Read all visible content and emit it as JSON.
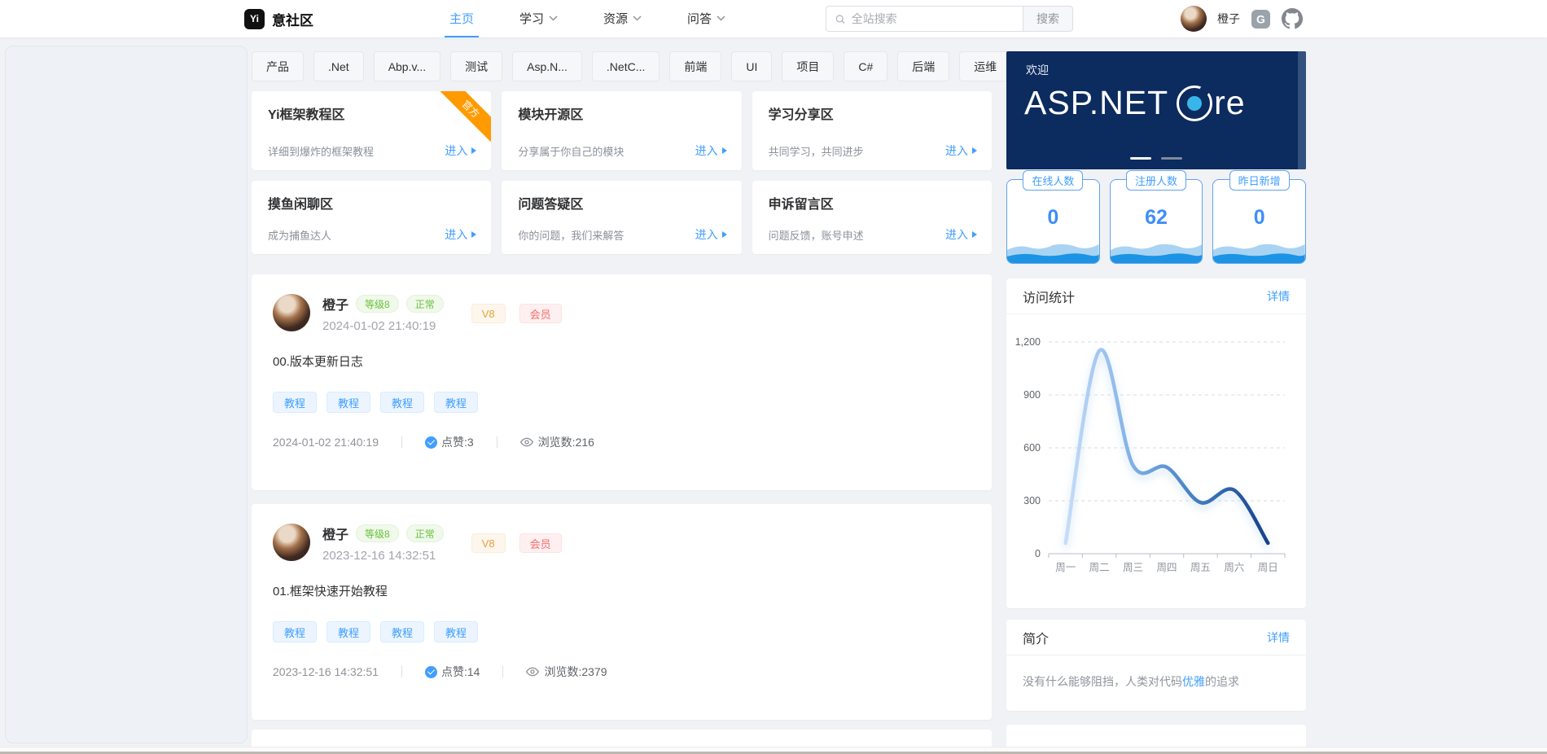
{
  "header": {
    "brand": "意社区",
    "brand_mark": "Yi",
    "nav": [
      {
        "label": "主页"
      },
      {
        "label": "学习"
      },
      {
        "label": "资源"
      },
      {
        "label": "问答"
      }
    ],
    "search": {
      "placeholder": "全站搜索",
      "button": "搜索"
    },
    "username": "橙子"
  },
  "tags": [
    "产品",
    ".Net",
    "Abp.v...",
    "测试",
    "Asp.N...",
    ".NetC...",
    "前端",
    "UI",
    "项目",
    "C#",
    "后端",
    "运维"
  ],
  "zones": [
    {
      "title": "Yi框架教程区",
      "desc": "详细到爆炸的框架教程",
      "enter": "进入",
      "ribbon": "官方"
    },
    {
      "title": "模块开源区",
      "desc": "分享属于你自己的模块",
      "enter": "进入"
    },
    {
      "title": "学习分享区",
      "desc": "共同学习，共同进步",
      "enter": "进入"
    },
    {
      "title": "摸鱼闲聊区",
      "desc": "成为捕鱼达人",
      "enter": "进入"
    },
    {
      "title": "问题答疑区",
      "desc": "你的问题，我们来解答",
      "enter": "进入"
    },
    {
      "title": "申诉留言区",
      "desc": "问题反馈，账号申述",
      "enter": "进入"
    }
  ],
  "posts": [
    {
      "author": "橙子",
      "level_badge": "等级8",
      "status_badge": "正常",
      "vip_badge": "V8",
      "member_badge": "会员",
      "datetime": "2024-01-02 21:40:19",
      "title": "00.版本更新日志",
      "tags": [
        "教程",
        "教程",
        "教程",
        "教程"
      ],
      "footer_time": "2024-01-02 21:40:19",
      "likes_label": "点赞:3",
      "views_label": "浏览数:216"
    },
    {
      "author": "橙子",
      "level_badge": "等级8",
      "status_badge": "正常",
      "vip_badge": "V8",
      "member_badge": "会员",
      "datetime": "2023-12-16 14:32:51",
      "title": "01.框架快速开始教程",
      "tags": [
        "教程",
        "教程",
        "教程",
        "教程"
      ],
      "footer_time": "2023-12-16 14:32:51",
      "likes_label": "点赞:14",
      "views_label": "浏览数:2379"
    }
  ],
  "sidebar": {
    "banner": {
      "welcome": "欢迎",
      "logo_left": "ASP.NET",
      "logo_right": "re"
    },
    "stats": [
      {
        "label": "在线人数",
        "value": "0"
      },
      {
        "label": "注册人数",
        "value": "62"
      },
      {
        "label": "昨日新增",
        "value": "0"
      }
    ],
    "visit": {
      "title": "访问统计",
      "detail": "详情"
    },
    "intro": {
      "title": "简介",
      "detail": "详情",
      "text_before": "没有什么能够阻挡，人类对代码",
      "link_text": "优雅",
      "text_after": "的追求"
    }
  },
  "chart_data": {
    "type": "line",
    "title": "访问统计",
    "categories": [
      "周一",
      "周二",
      "周三",
      "周四",
      "周五",
      "周六",
      "周日"
    ],
    "values": [
      60,
      1150,
      500,
      490,
      290,
      360,
      60
    ],
    "xlabel": "",
    "ylabel": "",
    "ylim": [
      0,
      1200
    ],
    "yticks": [
      0,
      300,
      600,
      900,
      1200
    ],
    "ytick_labels": [
      "0",
      "300",
      "600",
      "900",
      "1,200"
    ],
    "grid": "horizontal-dashed",
    "smooth": true,
    "legend": "none",
    "line_gradient": [
      "#c7ddfa",
      "#7fb0e8",
      "#3f79c0",
      "#17418c"
    ]
  },
  "colors": {
    "accent_blue": "#409eff",
    "banner_navy": "#0c2b5e",
    "core_dot_cyan": "#38b6e9",
    "ribbon_orange": "#ff9b00",
    "badge_green": "#67c23a",
    "badge_orange": "#e6a23c",
    "badge_red": "#f56c6c",
    "stat_border_blue": "#5fa3f0"
  }
}
